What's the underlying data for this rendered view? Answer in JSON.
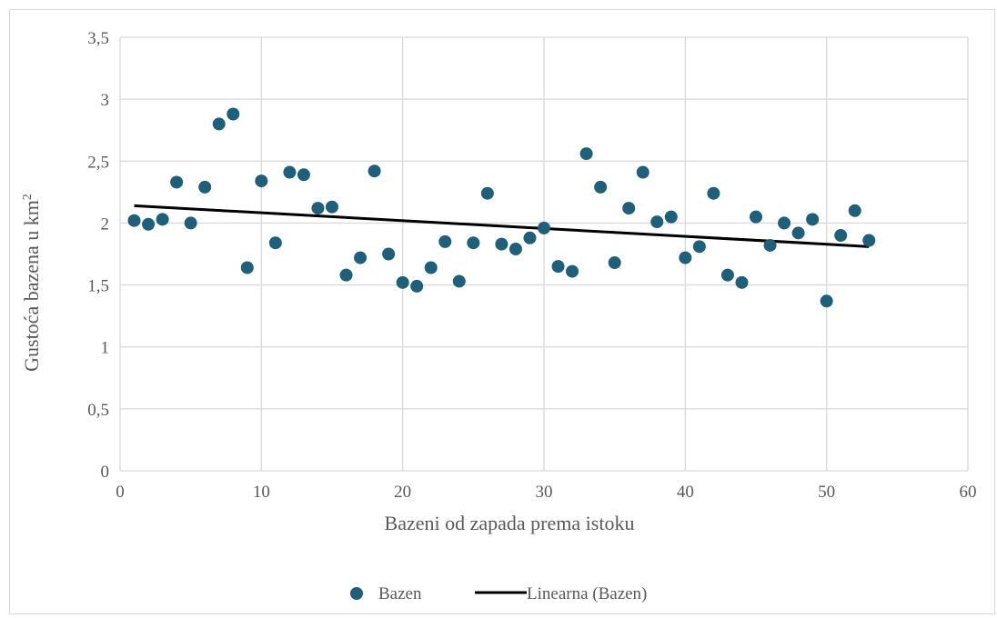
{
  "chart_data": {
    "type": "scatter",
    "xlabel": "Bazeni od zapada prema istoku",
    "ylabel_main": "Gustoća bazena u km",
    "ylabel_sup": "2",
    "xlim": [
      0,
      60
    ],
    "ylim": [
      0,
      3.5
    ],
    "x_ticks": [
      "0",
      "10",
      "20",
      "30",
      "40",
      "50",
      "60"
    ],
    "y_ticks": [
      "0",
      "0,5",
      "1",
      "1,5",
      "2",
      "2,5",
      "3",
      "3,5"
    ],
    "x_tick_values": [
      0,
      10,
      20,
      30,
      40,
      50,
      60
    ],
    "y_tick_values": [
      0,
      0.5,
      1,
      1.5,
      2,
      2.5,
      3,
      3.5
    ],
    "grid": true,
    "legend_position": "bottom",
    "series": [
      {
        "name": "Bazen",
        "color": "#1f5f7a",
        "x": [
          1,
          2,
          3,
          4,
          5,
          6,
          7,
          8,
          9,
          10,
          11,
          12,
          13,
          14,
          15,
          16,
          17,
          18,
          19,
          20,
          21,
          22,
          23,
          24,
          25,
          26,
          27,
          28,
          29,
          30,
          31,
          32,
          33,
          34,
          35,
          36,
          37,
          38,
          39,
          40,
          41,
          42,
          43,
          44,
          45,
          46,
          47,
          48,
          49,
          50,
          51,
          52,
          53
        ],
        "y": [
          2.02,
          1.99,
          2.03,
          2.33,
          2.0,
          2.29,
          2.8,
          2.88,
          1.64,
          2.34,
          1.84,
          2.41,
          2.39,
          2.12,
          2.13,
          1.58,
          1.72,
          2.42,
          1.75,
          1.52,
          1.49,
          1.64,
          1.85,
          1.53,
          1.84,
          2.24,
          1.83,
          1.79,
          1.88,
          1.96,
          1.65,
          1.61,
          2.56,
          2.29,
          1.68,
          2.12,
          2.41,
          2.01,
          2.05,
          1.72,
          1.81,
          2.24,
          1.58,
          1.52,
          2.05,
          1.82,
          2.0,
          1.92,
          2.03,
          1.37,
          1.9,
          2.1,
          1.86
        ]
      },
      {
        "name": "Linearna (Bazen)",
        "color": "#000000",
        "type": "line",
        "x": [
          1,
          53
        ],
        "y": [
          2.14,
          1.81
        ]
      }
    ]
  }
}
